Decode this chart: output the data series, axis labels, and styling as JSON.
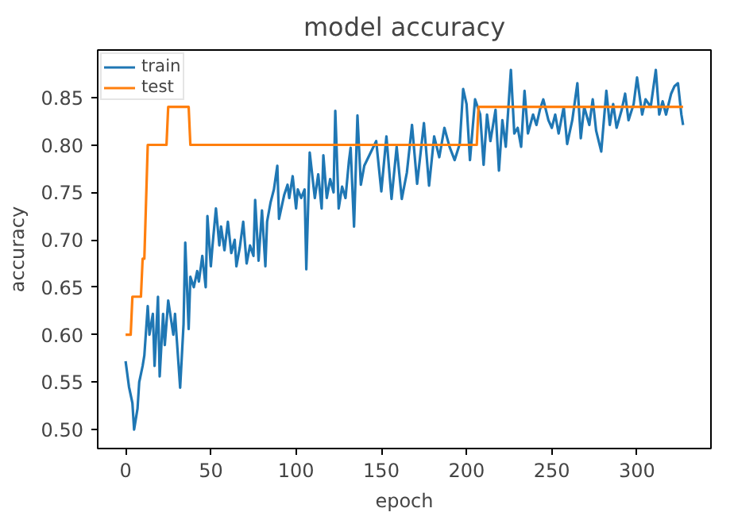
{
  "chart_data": {
    "type": "line",
    "title": "model accuracy",
    "xlabel": "epoch",
    "ylabel": "accuracy",
    "xlim": [
      -16.35,
      343.35
    ],
    "ylim": [
      0.48,
      0.9
    ],
    "xticks": [
      0,
      50,
      100,
      150,
      200,
      250,
      300
    ],
    "yticks": [
      {
        "value": 0.5,
        "label": "0.50"
      },
      {
        "value": 0.55,
        "label": "0.55"
      },
      {
        "value": 0.6,
        "label": "0.60"
      },
      {
        "value": 0.65,
        "label": "0.65"
      },
      {
        "value": 0.7,
        "label": "0.70"
      },
      {
        "value": 0.75,
        "label": "0.75"
      },
      {
        "value": 0.8,
        "label": "0.80"
      },
      {
        "value": 0.85,
        "label": "0.85"
      }
    ],
    "grid": false,
    "legend": "top left",
    "line_style": "solid",
    "series": [
      {
        "name": "train",
        "color": "#1f77b4",
        "x": [
          0,
          2,
          4,
          4.5,
          5,
          7,
          8,
          10,
          11,
          13,
          14,
          16,
          17,
          19,
          20,
          22,
          23,
          25,
          28,
          29,
          32,
          34,
          35,
          37,
          38,
          40,
          42,
          43,
          45,
          47,
          48,
          50,
          51,
          53,
          55,
          56,
          58,
          60,
          62,
          64,
          65,
          67,
          69,
          71,
          73,
          75,
          76,
          78,
          80,
          82,
          83,
          85,
          87,
          89,
          90,
          93,
          95,
          96,
          98,
          100,
          101,
          103,
          105,
          106,
          108,
          111,
          113,
          115,
          116,
          118,
          120,
          122,
          123,
          125,
          127,
          129,
          131,
          132,
          134,
          136,
          138,
          140,
          147,
          150,
          153,
          156,
          159,
          162,
          165,
          168,
          171,
          175,
          178,
          181,
          184,
          187,
          190,
          193,
          196,
          198,
          200,
          202,
          205,
          208,
          210,
          212,
          214,
          217,
          219,
          221,
          223,
          226,
          228,
          230,
          232,
          234,
          236,
          239,
          241,
          243,
          245,
          248,
          250,
          252,
          254,
          257,
          259,
          262,
          265,
          267,
          269,
          272,
          274,
          276,
          279,
          282,
          284,
          286,
          288,
          291,
          293,
          295,
          298,
          300,
          303,
          305,
          308,
          311,
          313,
          315,
          317,
          320,
          322,
          324,
          326,
          327
        ],
        "values": [
          0.572,
          0.545,
          0.528,
          0.514,
          0.5,
          0.522,
          0.55,
          0.567,
          0.578,
          0.63,
          0.6,
          0.622,
          0.567,
          0.64,
          0.556,
          0.622,
          0.589,
          0.636,
          0.6,
          0.622,
          0.544,
          0.611,
          0.697,
          0.606,
          0.661,
          0.65,
          0.667,
          0.656,
          0.683,
          0.65,
          0.725,
          0.672,
          0.694,
          0.733,
          0.694,
          0.714,
          0.689,
          0.719,
          0.686,
          0.7,
          0.672,
          0.692,
          0.719,
          0.675,
          0.694,
          0.683,
          0.742,
          0.678,
          0.731,
          0.672,
          0.719,
          0.739,
          0.753,
          0.778,
          0.722,
          0.747,
          0.758,
          0.744,
          0.767,
          0.733,
          0.753,
          0.744,
          0.753,
          0.669,
          0.792,
          0.744,
          0.769,
          0.733,
          0.789,
          0.744,
          0.764,
          0.75,
          0.836,
          0.733,
          0.756,
          0.744,
          0.783,
          0.797,
          0.714,
          0.831,
          0.758,
          0.778,
          0.804,
          0.751,
          0.809,
          0.743,
          0.798,
          0.743,
          0.771,
          0.821,
          0.759,
          0.823,
          0.757,
          0.809,
          0.787,
          0.818,
          0.798,
          0.784,
          0.801,
          0.859,
          0.843,
          0.784,
          0.848,
          0.832,
          0.779,
          0.832,
          0.804,
          0.837,
          0.773,
          0.826,
          0.798,
          0.879,
          0.812,
          0.818,
          0.798,
          0.857,
          0.812,
          0.832,
          0.821,
          0.837,
          0.848,
          0.826,
          0.818,
          0.832,
          0.812,
          0.84,
          0.801,
          0.826,
          0.865,
          0.807,
          0.84,
          0.821,
          0.848,
          0.815,
          0.793,
          0.857,
          0.821,
          0.843,
          0.818,
          0.837,
          0.854,
          0.826,
          0.843,
          0.871,
          0.832,
          0.848,
          0.84,
          0.879,
          0.832,
          0.846,
          0.832,
          0.854,
          0.862,
          0.865,
          0.832,
          0.821
        ]
      },
      {
        "name": "test",
        "color": "#ff7f0e",
        "x": [
          0,
          3,
          4,
          9,
          10,
          11,
          13,
          24,
          25,
          37,
          38,
          206,
          207,
          327
        ],
        "values": [
          0.6,
          0.6,
          0.64,
          0.64,
          0.68,
          0.68,
          0.8,
          0.8,
          0.84,
          0.84,
          0.8,
          0.8,
          0.84,
          0.84
        ]
      }
    ]
  }
}
